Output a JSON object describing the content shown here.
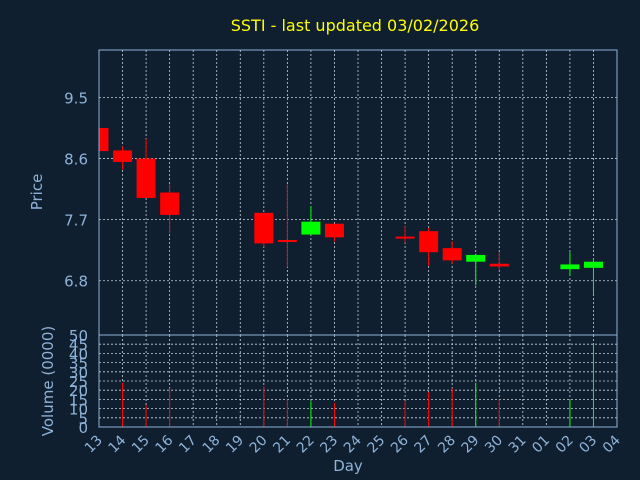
{
  "title": "SSTI - last updated 03/02/2026",
  "colors": {
    "background": "#0f1f30",
    "axis": "#8fb3d9",
    "grid": "#c8d0d8",
    "title": "#ffff00",
    "up": "#00ff00",
    "down": "#ff0000",
    "label": "#8fb3d9"
  },
  "chart_data": [
    {
      "type": "candlestick",
      "title": "SSTI - last updated 03/02/2026",
      "ylabel": "Price",
      "ylim": [
        6.0,
        10.2
      ],
      "yticks": [
        "9.5",
        "8.6",
        "7.7",
        "6.8"
      ],
      "ytick_values": [
        9.5,
        8.6,
        7.7,
        6.8
      ],
      "categories": [
        "13",
        "14",
        "15",
        "16",
        "17",
        "18",
        "19",
        "20",
        "21",
        "22",
        "23",
        "24",
        "25",
        "26",
        "27",
        "28",
        "29",
        "30",
        "31",
        "01",
        "02",
        "03",
        "04"
      ],
      "candles": [
        {
          "x": "13",
          "open": 9.05,
          "close": 8.71,
          "high": 9.05,
          "low": 8.71
        },
        {
          "x": "14",
          "open": 8.72,
          "close": 8.55,
          "high": 8.78,
          "low": 8.44
        },
        {
          "x": "15",
          "open": 8.6,
          "close": 8.02,
          "high": 8.89,
          "low": 8.02
        },
        {
          "x": "16",
          "open": 8.1,
          "close": 7.77,
          "high": 8.22,
          "low": 7.5
        },
        {
          "x": "20",
          "open": 7.8,
          "close": 7.35,
          "high": 7.8,
          "low": 7.3
        },
        {
          "x": "21",
          "open": 7.4,
          "close": 7.4,
          "high": 8.22,
          "low": 7.0
        },
        {
          "x": "22",
          "open": 7.48,
          "close": 7.67,
          "high": 7.9,
          "low": 7.48
        },
        {
          "x": "23",
          "open": 7.64,
          "close": 7.44,
          "high": 7.64,
          "low": 7.38
        },
        {
          "x": "26",
          "open": 7.45,
          "close": 7.45,
          "high": 7.6,
          "low": 7.36
        },
        {
          "x": "27",
          "open": 7.53,
          "close": 7.22,
          "high": 7.58,
          "low": 7.02
        },
        {
          "x": "28",
          "open": 7.28,
          "close": 7.1,
          "high": 7.38,
          "low": 7.05
        },
        {
          "x": "29",
          "open": 7.08,
          "close": 7.18,
          "high": 7.2,
          "low": 6.73
        },
        {
          "x": "30",
          "open": 7.05,
          "close": 7.01,
          "high": 7.22,
          "low": 6.96
        },
        {
          "x": "02",
          "open": 6.97,
          "close": 7.04,
          "high": 7.22,
          "low": 6.88
        },
        {
          "x": "03",
          "open": 6.99,
          "close": 7.08,
          "high": 7.12,
          "low": 6.6
        }
      ]
    },
    {
      "type": "bar",
      "ylabel": "Volume (0000)",
      "xlabel": "Day",
      "ylim": [
        0,
        50
      ],
      "yticks": [
        "0",
        "5",
        "10",
        "15",
        "20",
        "25",
        "30",
        "35",
        "40",
        "45",
        "50"
      ],
      "categories": [
        "13",
        "14",
        "15",
        "16",
        "17",
        "18",
        "19",
        "20",
        "21",
        "22",
        "23",
        "24",
        "25",
        "26",
        "27",
        "28",
        "29",
        "30",
        "31",
        "01",
        "02",
        "03",
        "04"
      ],
      "bars": [
        {
          "x": "14",
          "value": 24,
          "direction": "down"
        },
        {
          "x": "15",
          "value": 12,
          "direction": "down"
        },
        {
          "x": "16",
          "value": 21,
          "direction": "down"
        },
        {
          "x": "20",
          "value": 22,
          "direction": "down"
        },
        {
          "x": "21",
          "value": 15,
          "direction": "down"
        },
        {
          "x": "22",
          "value": 14,
          "direction": "up"
        },
        {
          "x": "23",
          "value": 13,
          "direction": "down"
        },
        {
          "x": "26",
          "value": 14,
          "direction": "down"
        },
        {
          "x": "27",
          "value": 19,
          "direction": "down"
        },
        {
          "x": "28",
          "value": 21,
          "direction": "down"
        },
        {
          "x": "29",
          "value": 24,
          "direction": "up"
        },
        {
          "x": "30",
          "value": 15,
          "direction": "down"
        },
        {
          "x": "02",
          "value": 15,
          "direction": "up"
        },
        {
          "x": "03",
          "value": 45,
          "direction": "up"
        }
      ]
    }
  ]
}
